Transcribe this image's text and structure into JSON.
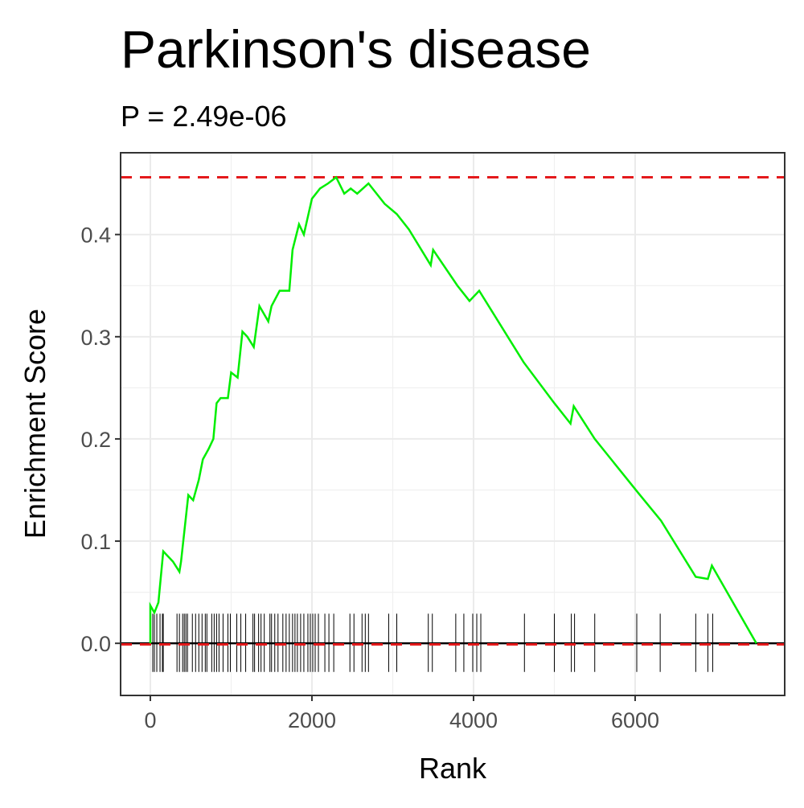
{
  "chart_data": {
    "type": "line",
    "title": "Parkinson's disease",
    "subtitle": "P = 2.49e-06",
    "x_label": "Rank",
    "y_label": "Enrichment Score",
    "x": [
      0,
      0,
      50,
      100,
      160,
      280,
      360,
      380,
      470,
      530,
      600,
      650,
      720,
      780,
      820,
      870,
      960,
      1000,
      1080,
      1140,
      1200,
      1280,
      1350,
      1460,
      1500,
      1600,
      1720,
      1760,
      1840,
      1900,
      2000,
      2100,
      2200,
      2300,
      2400,
      2480,
      2560,
      2700,
      2900,
      3050,
      3200,
      3470,
      3500,
      3800,
      3950,
      4070,
      4620,
      5000,
      5200,
      5240,
      5500,
      6030,
      6320,
      6750,
      6900,
      6950,
      7500
    ],
    "series": [
      {
        "color": "#00ee00",
        "values": [
          0,
          0.037,
          0.03,
          0.04,
          0.09,
          0.08,
          0.07,
          0.08,
          0.145,
          0.14,
          0.16,
          0.18,
          0.19,
          0.2,
          0.235,
          0.24,
          0.24,
          0.265,
          0.26,
          0.305,
          0.3,
          0.29,
          0.33,
          0.315,
          0.33,
          0.345,
          0.345,
          0.385,
          0.41,
          0.4,
          0.435,
          0.445,
          0.45,
          0.456,
          0.44,
          0.445,
          0.44,
          0.45,
          0.43,
          0.42,
          0.405,
          0.37,
          0.385,
          0.35,
          0.335,
          0.345,
          0.275,
          0.235,
          0.215,
          0.232,
          0.2,
          0.148,
          0.12,
          0.065,
          0.063,
          0.076,
          0
        ]
      }
    ],
    "hits": [
      30,
      50,
      80,
      120,
      150,
      160,
      330,
      360,
      400,
      420,
      440,
      460,
      520,
      560,
      600,
      640,
      680,
      700,
      760,
      790,
      820,
      850,
      900,
      960,
      990,
      1070,
      1120,
      1180,
      1270,
      1290,
      1340,
      1370,
      1410,
      1480,
      1500,
      1540,
      1580,
      1640,
      1680,
      1720,
      1760,
      1790,
      1820,
      1860,
      1900,
      1950,
      1980,
      2010,
      2040,
      2080,
      2160,
      2210,
      2270,
      2470,
      2520,
      2620,
      2660,
      2700,
      2950,
      3050,
      3440,
      3490,
      3780,
      3880,
      3990,
      4040,
      4090,
      4630,
      5000,
      5210,
      5250,
      5500,
      6020,
      6310,
      6750,
      6900,
      6960
    ],
    "hits_color": "#000000",
    "dashed_lines": [
      0.456,
      -0.001
    ],
    "dashed_color": "#e41a1c",
    "zero_line": 0,
    "xlim": [
      -368,
      7851
    ],
    "ylim": [
      -0.051,
      0.48
    ],
    "xticks": [
      0,
      2000,
      4000,
      6000
    ],
    "yticks": [
      {
        "value": 0,
        "label": "0.0"
      },
      0.1,
      0.2,
      0.3,
      0.4
    ],
    "grid": true
  }
}
